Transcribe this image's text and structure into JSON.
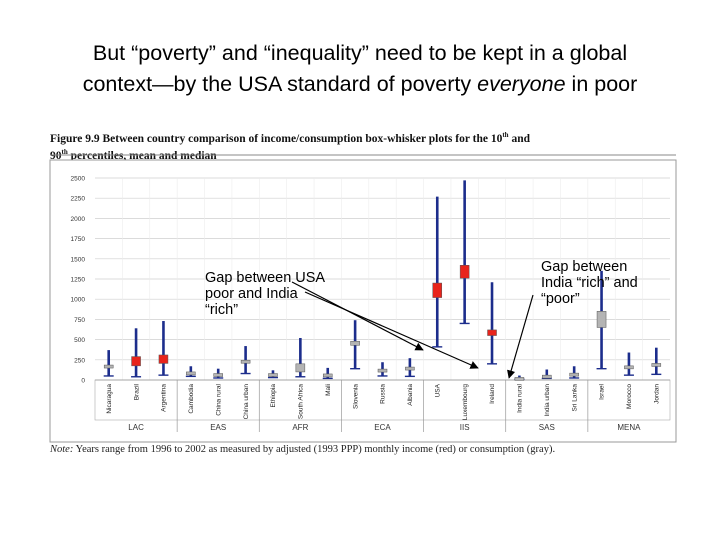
{
  "slide": {
    "title_line1": "But “poverty” and “inequality” need to be kept in a global",
    "title_line2_pre": "context—by the USA standard of poverty ",
    "title_line2_em": "everyone",
    "title_line2_post": " in poor"
  },
  "figure": {
    "caption_line1_pre": "Figure 9.9  Between country comparison of income/consumption box-whisker plots for the 10",
    "caption_sup1": "th",
    "caption_line1_post": " and",
    "caption_line2_pre": "90",
    "caption_sup2": "th",
    "caption_line2_post": " percentiles, mean and median",
    "note_label": "Note:",
    "note_text": " Years range from 1996 to 2002 as measured by adjusted (1993 PPP) monthly income (red) or consumption (gray)."
  },
  "callouts": {
    "left": "Gap between USA poor and India “rich”",
    "right": "Gap between India “rich” and “poor”"
  },
  "colors": {
    "income": "#e8241c",
    "consumption": "#b4b4b4",
    "whisker": "#1c2d8c",
    "grid": "#cfcfcf"
  },
  "chart_data": {
    "type": "box-whisker",
    "ylim": [
      0,
      2500
    ],
    "yticks": [
      "0",
      "250",
      "500",
      "750",
      "1000",
      "1250",
      "1500",
      "1750",
      "2000",
      "2250",
      "2500"
    ],
    "categories": [
      "Nicaragua",
      "Brazil",
      "Argentina",
      "Cambodia",
      "China rural",
      "China urban",
      "Ethiopia",
      "South Africa",
      "Mali",
      "Slovenia",
      "Russia",
      "Albania",
      "USA",
      "Luxembourg",
      "Ireland",
      "India rural",
      "India urban",
      "Sri Lanka",
      "Israel",
      "Morocco",
      "Jordan"
    ],
    "regions": [
      {
        "name": "LAC",
        "start": 0,
        "end": 2
      },
      {
        "name": "EAS",
        "start": 3,
        "end": 5
      },
      {
        "name": "AFR",
        "start": 6,
        "end": 8
      },
      {
        "name": "ECA",
        "start": 9,
        "end": 11
      },
      {
        "name": "IIS",
        "start": 12,
        "end": 14
      },
      {
        "name": "SAS",
        "start": 15,
        "end": 17
      },
      {
        "name": "MENA",
        "start": 18,
        "end": 20
      }
    ],
    "boxes": [
      {
        "p10": 50,
        "p90": 370,
        "box_low": 150,
        "box_high": 185,
        "measure": "consumption"
      },
      {
        "p10": 40,
        "p90": 640,
        "box_low": 175,
        "box_high": 290,
        "measure": "income"
      },
      {
        "p10": 60,
        "p90": 730,
        "box_low": 205,
        "box_high": 310,
        "measure": "income"
      },
      {
        "p10": 45,
        "p90": 170,
        "box_low": 85,
        "box_high": 100,
        "measure": "consumption"
      },
      {
        "p10": 25,
        "p90": 140,
        "box_low": 65,
        "box_high": 80,
        "measure": "consumption"
      },
      {
        "p10": 80,
        "p90": 420,
        "box_low": 220,
        "box_high": 245,
        "measure": "consumption"
      },
      {
        "p10": 30,
        "p90": 120,
        "box_low": 70,
        "box_high": 80,
        "measure": "consumption"
      },
      {
        "p10": 40,
        "p90": 520,
        "box_low": 100,
        "box_high": 200,
        "measure": "consumption"
      },
      {
        "p10": 20,
        "p90": 150,
        "box_low": 65,
        "box_high": 75,
        "measure": "consumption"
      },
      {
        "p10": 140,
        "p90": 740,
        "box_low": 430,
        "box_high": 480,
        "measure": "consumption"
      },
      {
        "p10": 50,
        "p90": 220,
        "box_low": 120,
        "box_high": 135,
        "measure": "consumption"
      },
      {
        "p10": 45,
        "p90": 270,
        "box_low": 140,
        "box_high": 160,
        "measure": "consumption"
      },
      {
        "p10": 410,
        "p90": 2270,
        "box_low": 1020,
        "box_high": 1200,
        "measure": "income"
      },
      {
        "p10": 700,
        "p90": 2470,
        "box_low": 1260,
        "box_high": 1420,
        "measure": "income"
      },
      {
        "p10": 200,
        "p90": 1210,
        "box_low": 550,
        "box_high": 620,
        "measure": "income"
      },
      {
        "p10": 10,
        "p90": 55,
        "box_low": 25,
        "box_high": 32,
        "measure": "consumption"
      },
      {
        "p10": 20,
        "p90": 130,
        "box_low": 50,
        "box_high": 60,
        "measure": "consumption"
      },
      {
        "p10": 25,
        "p90": 170,
        "box_low": 70,
        "box_high": 85,
        "measure": "consumption"
      },
      {
        "p10": 140,
        "p90": 1350,
        "box_low": 650,
        "box_high": 850,
        "measure": "consumption"
      },
      {
        "p10": 60,
        "p90": 340,
        "box_low": 150,
        "box_high": 175,
        "measure": "consumption"
      },
      {
        "p10": 70,
        "p90": 400,
        "box_low": 180,
        "box_high": 205,
        "measure": "consumption"
      }
    ]
  }
}
